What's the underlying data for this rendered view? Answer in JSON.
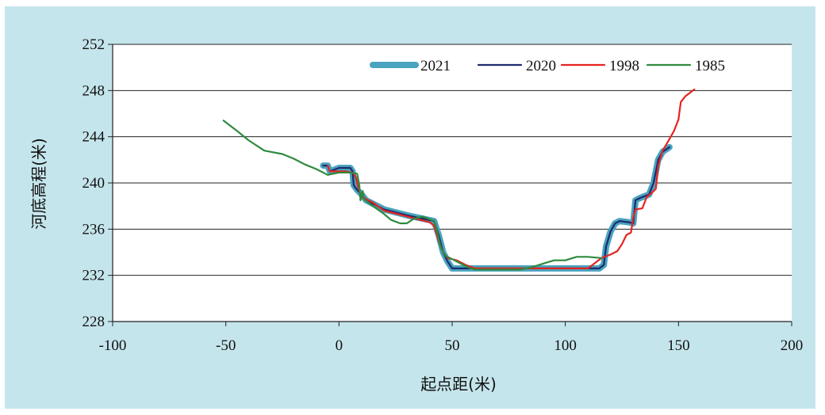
{
  "chart_data": {
    "type": "line",
    "title": "",
    "xlabel": "起点距(米)",
    "ylabel": "河底高程(米)",
    "xlim": [
      -100,
      200
    ],
    "ylim": [
      228,
      252
    ],
    "xticks": [
      -100,
      -50,
      0,
      50,
      100,
      150,
      200
    ],
    "yticks": [
      228,
      232,
      236,
      240,
      244,
      248,
      252
    ],
    "grid": "horizontal",
    "legend_position": "top-right",
    "series": [
      {
        "name": "2021",
        "color": "#4aa3bf",
        "points": [
          [
            -7,
            241.5
          ],
          [
            -5,
            241.5
          ],
          [
            -4,
            241.0
          ],
          [
            0,
            241.3
          ],
          [
            5,
            241.3
          ],
          [
            6,
            241.0
          ],
          [
            6.5,
            239.8
          ],
          [
            8,
            239.4
          ],
          [
            10,
            239.0
          ],
          [
            12,
            238.5
          ],
          [
            20,
            237.7
          ],
          [
            30,
            237.2
          ],
          [
            42,
            236.7
          ],
          [
            44,
            235.5
          ],
          [
            46,
            234.0
          ],
          [
            48,
            233.2
          ],
          [
            50,
            232.6
          ],
          [
            60,
            232.6
          ],
          [
            80,
            232.6
          ],
          [
            100,
            232.6
          ],
          [
            115,
            232.6
          ],
          [
            117,
            232.9
          ],
          [
            118,
            234.5
          ],
          [
            120,
            235.8
          ],
          [
            122,
            236.5
          ],
          [
            124,
            236.7
          ],
          [
            128,
            236.6
          ],
          [
            130,
            236.5
          ],
          [
            131,
            238.5
          ],
          [
            133,
            238.7
          ],
          [
            137,
            239.0
          ],
          [
            139,
            240.0
          ],
          [
            141,
            242.0
          ],
          [
            143,
            242.7
          ],
          [
            146,
            243.1
          ]
        ]
      },
      {
        "name": "2020",
        "color": "#1c2b6e",
        "points": [
          [
            -7,
            241.5
          ],
          [
            -5,
            241.5
          ],
          [
            -4,
            241.0
          ],
          [
            0,
            241.3
          ],
          [
            5,
            241.3
          ],
          [
            6,
            241.0
          ],
          [
            6.5,
            239.8
          ],
          [
            8,
            239.4
          ],
          [
            10,
            239.0
          ],
          [
            12,
            238.5
          ],
          [
            20,
            237.7
          ],
          [
            30,
            237.2
          ],
          [
            42,
            236.7
          ],
          [
            44,
            235.5
          ],
          [
            46,
            234.0
          ],
          [
            48,
            233.2
          ],
          [
            50,
            232.6
          ],
          [
            60,
            232.6
          ],
          [
            80,
            232.6
          ],
          [
            100,
            232.6
          ],
          [
            115,
            232.6
          ],
          [
            117,
            232.9
          ],
          [
            118,
            234.5
          ],
          [
            120,
            235.8
          ],
          [
            122,
            236.5
          ],
          [
            124,
            236.7
          ],
          [
            128,
            236.6
          ],
          [
            130,
            236.5
          ],
          [
            131,
            238.5
          ],
          [
            133,
            238.7
          ],
          [
            137,
            239.0
          ],
          [
            139,
            240.0
          ],
          [
            141,
            242.0
          ],
          [
            143,
            242.7
          ],
          [
            146,
            243.1
          ]
        ]
      },
      {
        "name": "1998",
        "color": "#e52420",
        "points": [
          [
            -5,
            241.5
          ],
          [
            -4,
            241.0
          ],
          [
            0,
            241.0
          ],
          [
            3,
            241.0
          ],
          [
            6,
            240.9
          ],
          [
            7.5,
            240.5
          ],
          [
            8.5,
            239.6
          ],
          [
            10,
            238.8
          ],
          [
            15,
            238.3
          ],
          [
            20,
            237.6
          ],
          [
            30,
            237.1
          ],
          [
            40,
            236.6
          ],
          [
            42,
            236.3
          ],
          [
            44,
            235.0
          ],
          [
            46,
            234.0
          ],
          [
            48,
            233.5
          ],
          [
            52,
            233.3
          ],
          [
            56,
            232.9
          ],
          [
            60,
            232.6
          ],
          [
            80,
            232.6
          ],
          [
            100,
            232.6
          ],
          [
            110,
            232.6
          ],
          [
            116,
            233.5
          ],
          [
            120,
            233.8
          ],
          [
            123,
            234.1
          ],
          [
            125,
            234.7
          ],
          [
            127,
            235.5
          ],
          [
            129,
            235.7
          ],
          [
            130,
            237.0
          ],
          [
            131,
            237.7
          ],
          [
            134,
            237.8
          ],
          [
            136,
            238.8
          ],
          [
            138,
            239.1
          ],
          [
            140,
            239.5
          ],
          [
            141,
            241.5
          ],
          [
            143,
            242.8
          ],
          [
            146,
            243.8
          ],
          [
            148,
            244.5
          ],
          [
            150,
            245.5
          ],
          [
            151,
            247.0
          ],
          [
            153,
            247.5
          ],
          [
            155,
            247.8
          ],
          [
            157,
            248.1
          ]
        ]
      },
      {
        "name": "1985",
        "color": "#2f8a3e",
        "points": [
          [
            -51,
            245.4
          ],
          [
            -45,
            244.5
          ],
          [
            -40,
            243.7
          ],
          [
            -33,
            242.8
          ],
          [
            -25,
            242.5
          ],
          [
            -20,
            242.1
          ],
          [
            -15,
            241.6
          ],
          [
            -10,
            241.2
          ],
          [
            -5,
            240.7
          ],
          [
            0,
            240.9
          ],
          [
            5,
            240.9
          ],
          [
            8,
            240.8
          ],
          [
            9,
            239.8
          ],
          [
            9.5,
            238.5
          ],
          [
            10.5,
            239.3
          ],
          [
            11,
            238.6
          ],
          [
            15,
            238.0
          ],
          [
            20,
            237.3
          ],
          [
            23,
            236.8
          ],
          [
            27,
            236.5
          ],
          [
            30,
            236.5
          ],
          [
            33,
            236.9
          ],
          [
            37,
            237.1
          ],
          [
            42,
            236.7
          ],
          [
            43,
            236.1
          ],
          [
            45,
            234.4
          ],
          [
            47,
            233.7
          ],
          [
            50,
            233.4
          ],
          [
            54,
            233.0
          ],
          [
            57,
            232.7
          ],
          [
            60,
            232.5
          ],
          [
            70,
            232.5
          ],
          [
            80,
            232.5
          ],
          [
            85,
            232.7
          ],
          [
            90,
            233.0
          ],
          [
            95,
            233.3
          ],
          [
            100,
            233.3
          ],
          [
            105,
            233.6
          ],
          [
            110,
            233.6
          ],
          [
            116,
            233.5
          ]
        ]
      }
    ]
  }
}
